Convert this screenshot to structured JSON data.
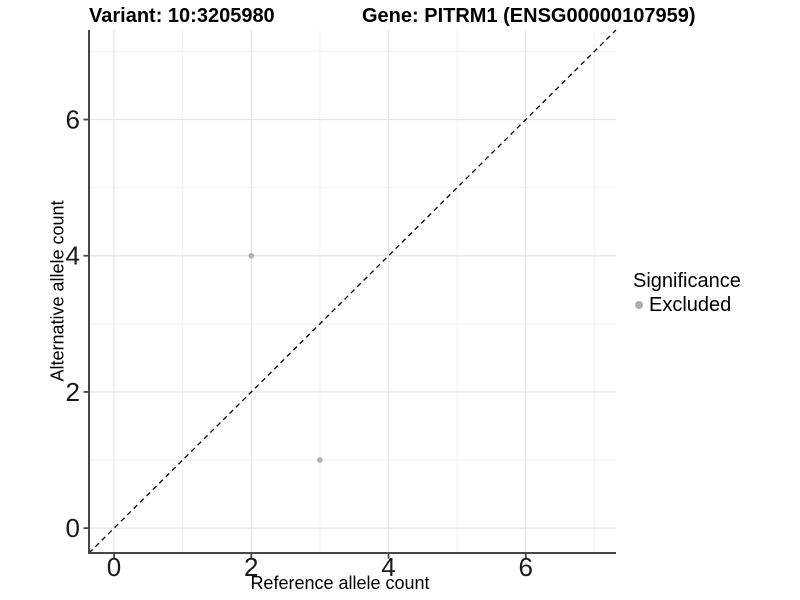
{
  "colors": {
    "background": "#ffffff",
    "point": "#b0b0b0",
    "grid_major": "#e5e5e5",
    "grid_minor": "#f2f2f2",
    "axis": "#474747",
    "tick_text": "#1a1a1a",
    "identity_line": "#000000"
  },
  "chart_data": {
    "type": "scatter",
    "title_left": "Variant: 10:3205980",
    "title_right": "Gene: PITRM1 (ENSG00000107959)",
    "xlabel": "Reference allele count",
    "ylabel": "Alternative allele count",
    "xlim": [
      -0.365,
      7.315
    ],
    "ylim": [
      -0.365,
      7.315
    ],
    "xticks": [
      0,
      2,
      4,
      6
    ],
    "yticks": [
      0,
      2,
      4,
      6
    ],
    "x_minor": [
      1,
      3,
      5,
      7
    ],
    "y_minor": [
      1,
      3,
      5,
      7
    ],
    "grid": "major+minor",
    "identity_line": {
      "equation": "y = x",
      "style": "dashed"
    },
    "series": [
      {
        "name": "Excluded",
        "color": "#b0b0b0",
        "points": [
          {
            "x": 2,
            "y": 4
          },
          {
            "x": 3,
            "y": 1
          }
        ]
      }
    ],
    "legend": {
      "title": "Significance",
      "position": "right",
      "items": [
        {
          "label": "Excluded",
          "color": "#b0b0b0"
        }
      ]
    }
  }
}
